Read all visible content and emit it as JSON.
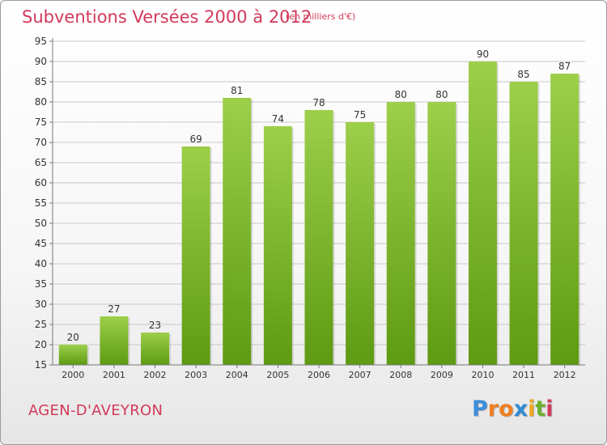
{
  "header": {
    "title": "Subventions Versées 2000 à 2012",
    "subtitle": "(en milliers d'€)"
  },
  "commune": "AGEN-D'AVEYRON",
  "logo": {
    "text": "Proxiti",
    "letters": [
      "P",
      "r",
      "o",
      "x",
      "i",
      "t",
      "i"
    ]
  },
  "colors": {
    "accent": "#d23a5a",
    "bar_top": "#9ccf4a",
    "bar_bottom": "#5e9a12"
  },
  "chart_data": {
    "type": "bar",
    "title": "Subventions Versées 2000 à 2012",
    "subtitle": "(en milliers d'€)",
    "categories": [
      "2000",
      "2001",
      "2002",
      "2003",
      "2004",
      "2005",
      "2006",
      "2007",
      "2008",
      "2009",
      "2010",
      "2011",
      "2012"
    ],
    "values": [
      20,
      27,
      23,
      69,
      81,
      74,
      78,
      75,
      80,
      80,
      90,
      85,
      87
    ],
    "ylim": [
      15,
      95
    ],
    "yticks": [
      15,
      20,
      25,
      30,
      35,
      40,
      45,
      50,
      55,
      60,
      65,
      70,
      75,
      80,
      85,
      90,
      95
    ],
    "grid": true,
    "data_labels": true
  }
}
